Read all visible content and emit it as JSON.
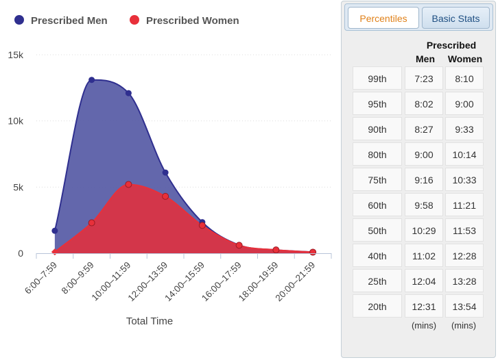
{
  "chart_data": {
    "type": "area",
    "xlabel": "Total Time",
    "ylabel": "",
    "ylim": [
      0,
      15000
    ],
    "yticks": [
      "0",
      "5k",
      "10k",
      "15k"
    ],
    "ytick_values": [
      0,
      5000,
      10000,
      15000
    ],
    "categories": [
      "6:00–7:59",
      "8:00–9:59",
      "10:00–11:59",
      "12:00–13:59",
      "14:00–15:59",
      "16:00–17:59",
      "18:00–19:59",
      "20:00–21:59"
    ],
    "series": [
      {
        "name": "Prescribed Men",
        "color": "#2f2f8f",
        "fill": "#5b5fa8",
        "values": [
          1700,
          13100,
          12100,
          6100,
          2350,
          620,
          250,
          90
        ]
      },
      {
        "name": "Prescribed Women",
        "color": "#e8303a",
        "fill": "#d93444",
        "values": [
          100,
          2300,
          5200,
          4300,
          2100,
          600,
          250,
          80
        ]
      }
    ],
    "grid": true,
    "legend_position": "top-left"
  },
  "panel": {
    "tabs": [
      {
        "label": "Percentiles",
        "active": true
      },
      {
        "label": "Basic Stats",
        "active": false
      }
    ],
    "header_group": "Prescribed",
    "header_men": "Men",
    "header_women": "Women",
    "rows": [
      {
        "pct": "99th",
        "men": "7:23",
        "women": "8:10"
      },
      {
        "pct": "95th",
        "men": "8:02",
        "women": "9:00"
      },
      {
        "pct": "90th",
        "men": "8:27",
        "women": "9:33"
      },
      {
        "pct": "80th",
        "men": "9:00",
        "women": "10:14"
      },
      {
        "pct": "75th",
        "men": "9:16",
        "women": "10:33"
      },
      {
        "pct": "60th",
        "men": "9:58",
        "women": "11:21"
      },
      {
        "pct": "50th",
        "men": "10:29",
        "women": "11:53"
      },
      {
        "pct": "40th",
        "men": "11:02",
        "women": "12:28"
      },
      {
        "pct": "25th",
        "men": "12:04",
        "women": "13:28"
      },
      {
        "pct": "20th",
        "men": "12:31",
        "women": "13:54"
      }
    ],
    "unit_men": "(mins)",
    "unit_women": "(mins)"
  }
}
